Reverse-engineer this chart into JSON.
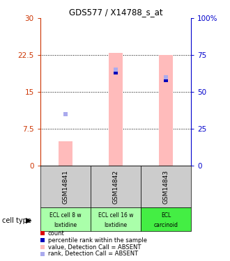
{
  "title": "GDS577 / X14788_s_at",
  "samples": [
    "GSM14841",
    "GSM14842",
    "GSM14843"
  ],
  "cell_type_labels_line1": [
    "ECL cell 8 w",
    "ECL cell 16 w",
    "ECL"
  ],
  "cell_type_labels_line2": [
    "loxtidine",
    "loxtidine",
    "carcinoid"
  ],
  "cell_type_colors": [
    "#aaffaa",
    "#aaffaa",
    "#44ee44"
  ],
  "bar_positions": [
    1,
    2,
    3
  ],
  "pink_bar_values": [
    5.0,
    23.0,
    22.5
  ],
  "blue_rank_values": [
    null,
    19.0,
    17.5
  ],
  "light_blue_rank_values": [
    10.5,
    19.5,
    18.0
  ],
  "left_yticks": [
    0,
    7.5,
    15,
    22.5,
    30
  ],
  "left_yticklabels": [
    "0",
    "7.5",
    "15",
    "22.5",
    "30"
  ],
  "right_yticks": [
    0,
    7.5,
    15,
    22.5,
    30
  ],
  "right_yticklabels": [
    "0",
    "25",
    "50",
    "75",
    "100%"
  ],
  "ymax": 30,
  "pink_color": "#ffbbbb",
  "light_blue_color": "#aaaaee",
  "dark_red_color": "#dd0000",
  "dark_blue_color": "#0000bb",
  "sample_box_color": "#cccccc",
  "left_ytick_color": "#cc3300",
  "right_ytick_color": "#0000cc",
  "bar_width": 0.28,
  "legend_items": [
    [
      "#dd0000",
      "count"
    ],
    [
      "#0000bb",
      "percentile rank within the sample"
    ],
    [
      "#ffbbbb",
      "value, Detection Call = ABSENT"
    ],
    [
      "#aaaaee",
      "rank, Detection Call = ABSENT"
    ]
  ]
}
